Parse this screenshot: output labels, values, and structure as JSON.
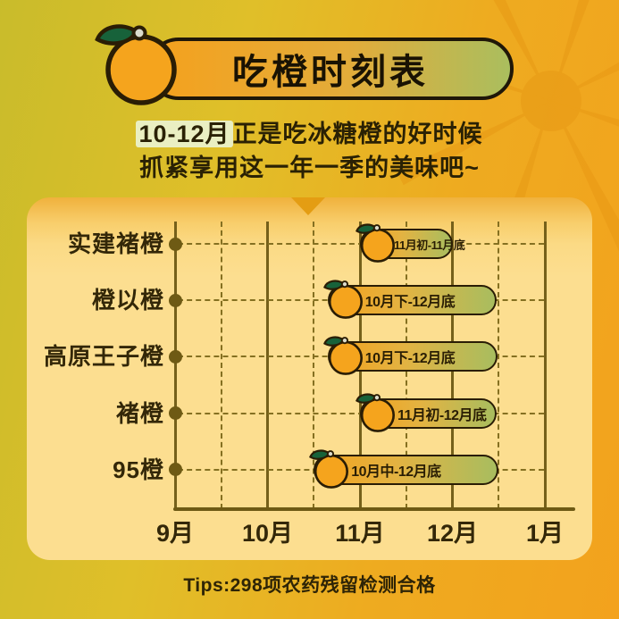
{
  "title": "吃橙时刻表",
  "subtitle": {
    "highlight": "10-12月",
    "line1_rest": "正是吃冰糖橙的好时候",
    "line2": "抓紧享用这一年一季的美味吧~"
  },
  "footer_tips": "Tips:298项农药残留检测合格",
  "chart_data": {
    "type": "bar",
    "subtype": "horizontal-timeline-gantt",
    "title": "吃橙时刻表",
    "categories": [
      "实建褚橙",
      "橙以橙",
      "高原王子橙",
      "褚橙",
      "95橙"
    ],
    "x_axis": {
      "ticks": [
        "9月",
        "10月",
        "11月",
        "12月",
        "1月"
      ],
      "range_months": [
        9,
        13
      ],
      "grid": "solid lines at month starts, dashed lines at half-months and row guides"
    },
    "bars": [
      {
        "category": "实建褚橙",
        "label": "11月初-11月底",
        "start_month": 11.0,
        "end_month": 12.0
      },
      {
        "category": "橙以橙",
        "label": "10月下-12月底",
        "start_month": 10.65,
        "end_month": 12.48
      },
      {
        "category": "高原王子橙",
        "label": "10月下-12月底",
        "start_month": 10.65,
        "end_month": 12.49
      },
      {
        "category": "褚橙",
        "label": "11月初-12月底",
        "start_month": 11.0,
        "end_month": 12.48
      },
      {
        "category": "95橙",
        "label": "10月中-12月底",
        "start_month": 10.5,
        "end_month": 12.5
      }
    ],
    "legend": "none"
  },
  "colors": {
    "background_left": "#c9bc2b",
    "background_right": "#f3a21d",
    "panel": "#fcde90",
    "title_pill_left": "#f5a11d",
    "title_pill_right": "#aabe5e",
    "bar_left": "#f3a21e",
    "bar_right": "#a8bd5f",
    "outline": "#2a1d05",
    "grid": "#75601a",
    "grid_dashed": "#857021",
    "text_dark": "#2a2104",
    "highlight_bg": "#eaefc2",
    "orange_fruit": "#f5a41d",
    "leaf": "#17623a",
    "stem": "#dbdbcc",
    "watermark_spoke": "#e69612",
    "notch": "#e49d13"
  }
}
